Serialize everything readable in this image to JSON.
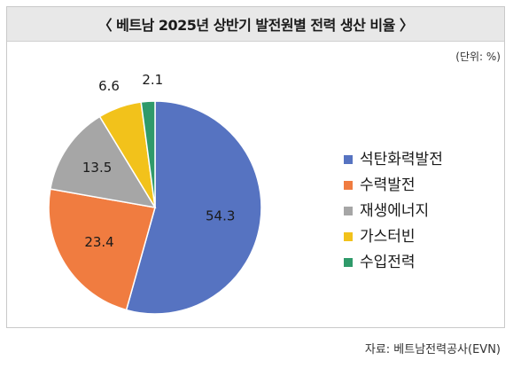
{
  "header": {
    "title": "〈 베트남 2025년 상반기 발전원별 전력 생산 비율 〉"
  },
  "unit_label": "(단위: %)",
  "source": "자료: 베트남전력공사(EVN)",
  "chart_data": {
    "type": "pie",
    "title": "〈 베트남 2025년 상반기 발전원별 전력 생산 비율 〉",
    "unit": "(단위: %)",
    "slices": [
      {
        "label": "석탄화력발전",
        "value": 54.3,
        "display": "54.3",
        "color": "#5673c1"
      },
      {
        "label": "수력발전",
        "value": 23.4,
        "display": "23.4",
        "color": "#f07c40"
      },
      {
        "label": "재생에너지",
        "value": 13.5,
        "display": "13.5",
        "color": "#a6a6a6"
      },
      {
        "label": "가스터빈",
        "value": 6.6,
        "display": "6.6",
        "color": "#f2c21b"
      },
      {
        "label": "수입전력",
        "value": 2.1,
        "display": "2.1",
        "color": "#2f9a6a"
      }
    ],
    "legend_position": "right"
  }
}
